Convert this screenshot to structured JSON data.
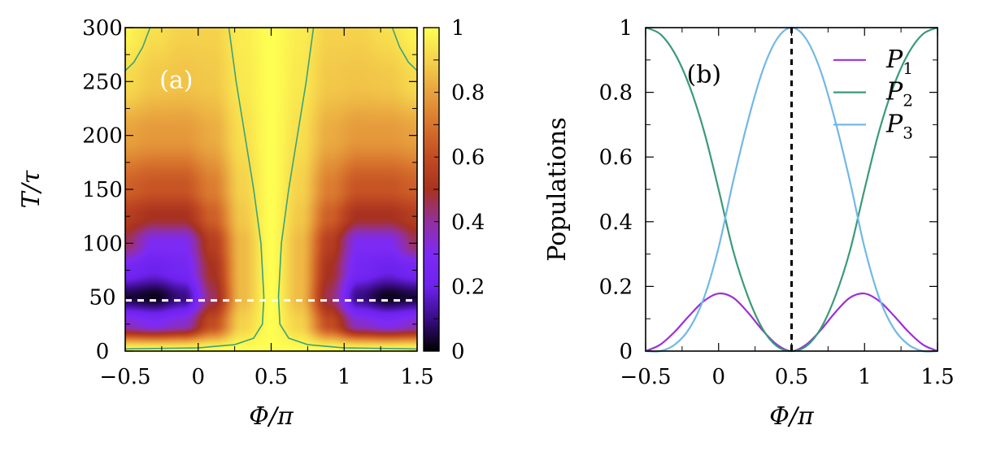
{
  "chart_data": [
    {
      "panel_label": "(a)",
      "type": "heatmap",
      "xlabel": "Φ/π",
      "ylabel": "T/τ",
      "xlim": [
        -0.5,
        1.5
      ],
      "ylim": [
        0,
        300
      ],
      "xticks": [
        "−0.5",
        "0",
        "0.5",
        "1",
        "1.5"
      ],
      "xtick_values": [
        -0.5,
        0,
        0.5,
        1,
        1.5
      ],
      "yticks": [
        "0",
        "50",
        "100",
        "150",
        "200",
        "250",
        "300"
      ],
      "ytick_values": [
        0,
        50,
        100,
        150,
        200,
        250,
        300
      ],
      "colorbar": {
        "range": [
          0,
          1
        ],
        "ticks": [
          "0",
          "0.2",
          "0.4",
          "0.6",
          "0.8",
          "1"
        ],
        "tick_values": [
          0,
          0.2,
          0.4,
          0.6,
          0.8,
          1
        ]
      },
      "colormap": [
        [
          0,
          "#000000"
        ],
        [
          0.1,
          "#3a0d86"
        ],
        [
          0.2,
          "#6e22ee"
        ],
        [
          0.3,
          "#7d2af5"
        ],
        [
          0.4,
          "#93309e"
        ],
        [
          0.5,
          "#a8321f"
        ],
        [
          0.6,
          "#c24c22"
        ],
        [
          0.7,
          "#d8742e"
        ],
        [
          0.8,
          "#e8a23e"
        ],
        [
          0.9,
          "#f5d24c"
        ],
        [
          1,
          "#fefe52"
        ]
      ],
      "grid_x": [
        -0.5,
        -0.3,
        -0.1,
        0.1,
        0.3,
        0.5,
        0.7,
        0.9,
        1.1,
        1.3,
        1.5
      ],
      "grid_y": [
        0,
        25,
        50,
        75,
        100,
        125,
        150,
        200,
        250,
        300
      ],
      "z": [
        [
          1,
          1,
          1,
          1,
          1,
          1,
          1,
          1,
          1,
          1,
          1
        ],
        [
          0.35,
          0.3,
          0.35,
          0.6,
          0.9,
          1,
          0.9,
          0.6,
          0.35,
          0.3,
          0.35
        ],
        [
          0.05,
          0.02,
          0.1,
          0.45,
          0.85,
          1,
          0.85,
          0.45,
          0.1,
          0.02,
          0.05
        ],
        [
          0.25,
          0.2,
          0.25,
          0.5,
          0.85,
          1,
          0.85,
          0.5,
          0.25,
          0.2,
          0.25
        ],
        [
          0.45,
          0.3,
          0.3,
          0.55,
          0.85,
          1,
          0.85,
          0.55,
          0.3,
          0.3,
          0.45
        ],
        [
          0.55,
          0.5,
          0.5,
          0.65,
          0.88,
          1,
          0.88,
          0.65,
          0.5,
          0.5,
          0.55
        ],
        [
          0.65,
          0.62,
          0.62,
          0.72,
          0.9,
          1,
          0.9,
          0.72,
          0.62,
          0.62,
          0.65
        ],
        [
          0.8,
          0.78,
          0.78,
          0.82,
          0.93,
          1,
          0.93,
          0.82,
          0.78,
          0.78,
          0.8
        ],
        [
          0.92,
          0.88,
          0.87,
          0.88,
          0.95,
          1,
          0.95,
          0.88,
          0.87,
          0.88,
          0.92
        ],
        [
          0.98,
          0.93,
          0.9,
          0.9,
          0.96,
          1,
          0.96,
          0.9,
          0.9,
          0.93,
          0.98
        ]
      ],
      "contour_color": "#3aa37a",
      "contours": [
        [
          [
            -0.5,
            2
          ],
          [
            0,
            3
          ],
          [
            0.25,
            6
          ],
          [
            0.38,
            12
          ],
          [
            0.44,
            25
          ],
          [
            0.45,
            50
          ],
          [
            0.43,
            100
          ],
          [
            0.38,
            150
          ],
          [
            0.32,
            200
          ],
          [
            0.26,
            250
          ],
          [
            0.21,
            300
          ]
        ],
        [
          [
            1.5,
            2
          ],
          [
            1,
            3
          ],
          [
            0.75,
            6
          ],
          [
            0.62,
            12
          ],
          [
            0.56,
            25
          ],
          [
            0.55,
            50
          ],
          [
            0.57,
            100
          ],
          [
            0.62,
            150
          ],
          [
            0.68,
            200
          ],
          [
            0.74,
            250
          ],
          [
            0.79,
            300
          ]
        ],
        [
          [
            -0.5,
            260
          ],
          [
            -0.44,
            268
          ],
          [
            -0.38,
            282
          ],
          [
            -0.33,
            300
          ]
        ],
        [
          [
            1.5,
            260
          ],
          [
            1.44,
            268
          ],
          [
            1.38,
            282
          ],
          [
            1.33,
            300
          ]
        ]
      ],
      "reference_line": {
        "T": 47,
        "color": "#ffffff",
        "style": "dashed"
      }
    },
    {
      "panel_label": "(b)",
      "type": "line",
      "xlabel": "Φ/π",
      "ylabel": "Populations",
      "xlim": [
        -0.5,
        1.5
      ],
      "ylim": [
        0,
        1
      ],
      "xticks": [
        "−0.5",
        "0",
        "0.5",
        "1",
        "1.5"
      ],
      "xtick_values": [
        -0.5,
        0,
        0.5,
        1,
        1.5
      ],
      "yticks": [
        "0",
        "0.2",
        "0.4",
        "0.6",
        "0.8",
        "1"
      ],
      "ytick_values": [
        0,
        0.2,
        0.4,
        0.6,
        0.8,
        1
      ],
      "legend_position": "top-right",
      "x": [
        -0.5,
        -0.4,
        -0.3,
        -0.2,
        -0.1,
        0,
        0.1,
        0.2,
        0.3,
        0.4,
        0.5,
        0.6,
        0.7,
        0.8,
        0.9,
        1,
        1.1,
        1.2,
        1.3,
        1.4,
        1.5
      ],
      "series": [
        {
          "name": "P",
          "sub": "1",
          "color": "#9b30d9",
          "values": [
            0,
            0.02,
            0.06,
            0.11,
            0.155,
            0.178,
            0.165,
            0.12,
            0.065,
            0.02,
            0,
            0.02,
            0.065,
            0.12,
            0.165,
            0.178,
            0.155,
            0.11,
            0.06,
            0.02,
            0
          ]
        },
        {
          "name": "P",
          "sub": "2",
          "color": "#3a9a78",
          "values": [
            1,
            0.98,
            0.92,
            0.82,
            0.68,
            0.5,
            0.31,
            0.17,
            0.07,
            0.015,
            0,
            0.015,
            0.07,
            0.17,
            0.31,
            0.5,
            0.68,
            0.82,
            0.92,
            0.98,
            1
          ]
        },
        {
          "name": "P",
          "sub": "3",
          "color": "#72b8e6",
          "values": [
            0,
            0,
            0.02,
            0.07,
            0.165,
            0.32,
            0.525,
            0.71,
            0.865,
            0.965,
            1,
            0.965,
            0.865,
            0.71,
            0.525,
            0.32,
            0.165,
            0.07,
            0.02,
            0,
            0
          ]
        }
      ],
      "reference_line": {
        "x": 0.5,
        "color": "#000000",
        "style": "dashed"
      }
    }
  ]
}
